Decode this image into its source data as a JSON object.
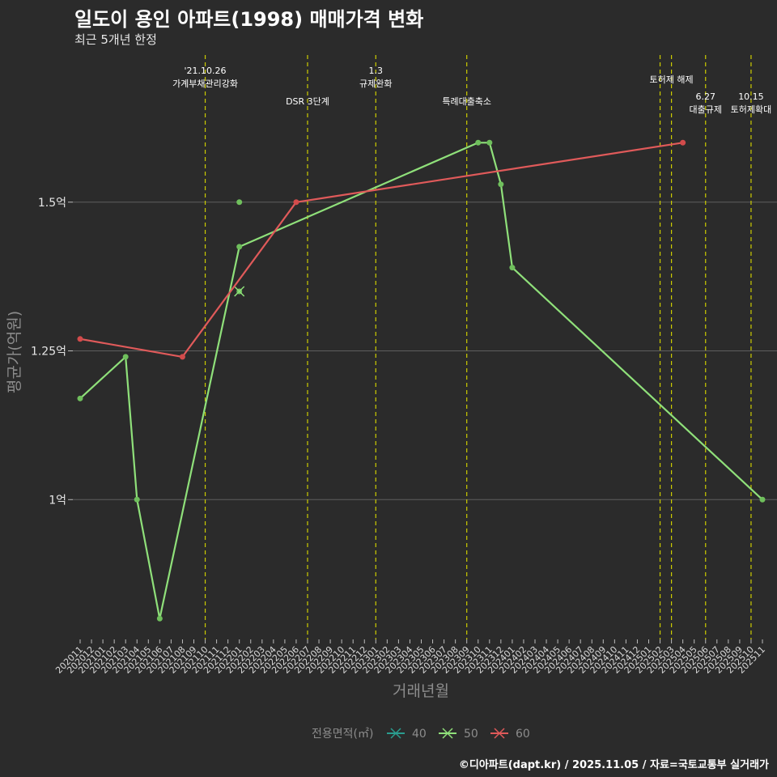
{
  "header": {
    "title": "일도이 용인 아파트(1998) 매매가격 변화",
    "subtitle": "최근 5개년 한정"
  },
  "caption": "©디아파트(dapt.kr) / 2025.11.05 / 자료=국토교통부 실거래가",
  "colors": {
    "background": "#2b2b2b",
    "grid": "#5e5e5e",
    "event_line": "#cccc00",
    "series_40": "#2a9d8f",
    "series_50": "#8fe07a",
    "series_60": "#e05a5a"
  },
  "chart_data": {
    "type": "line",
    "title": "일도이 용인 아파트(1998) 매매가격 변화",
    "subtitle": "최근 5개년 한정",
    "xlabel": "거래년월",
    "ylabel": "평균가(억원)",
    "ylim": [
      0.765,
      1.75
    ],
    "y_ticks": [
      {
        "value": 1.0,
        "label": "1억"
      },
      {
        "value": 1.25,
        "label": "1.25억"
      },
      {
        "value": 1.5,
        "label": "1.5억"
      }
    ],
    "categories": [
      "202011",
      "202012",
      "202101",
      "202102",
      "202103",
      "202104",
      "202105",
      "202106",
      "202107",
      "202108",
      "202109",
      "202110",
      "202111",
      "202112",
      "202201",
      "202202",
      "202203",
      "202204",
      "202205",
      "202206",
      "202207",
      "202208",
      "202209",
      "202210",
      "202211",
      "202212",
      "202301",
      "202302",
      "202303",
      "202304",
      "202305",
      "202306",
      "202307",
      "202308",
      "202309",
      "202310",
      "202311",
      "202312",
      "202401",
      "202402",
      "202403",
      "202404",
      "202405",
      "202406",
      "202407",
      "202408",
      "202409",
      "202410",
      "202411",
      "202412",
      "202501",
      "202502",
      "202503",
      "202504",
      "202505",
      "202506",
      "202507",
      "202508",
      "202509",
      "202510",
      "202511"
    ],
    "series": [
      {
        "name": "40",
        "line": [],
        "points": []
      },
      {
        "name": "50",
        "line": [
          {
            "x": "202011",
            "y": 1.17
          },
          {
            "x": "202103",
            "y": 1.24
          },
          {
            "x": "202104",
            "y": 1.0
          },
          {
            "x": "202106",
            "y": 0.8
          },
          {
            "x": "202201",
            "y": 1.425
          },
          {
            "x": "202310",
            "y": 1.6
          },
          {
            "x": "202311",
            "y": 1.6
          },
          {
            "x": "202312",
            "y": 1.53
          },
          {
            "x": "202401",
            "y": 1.39
          },
          {
            "x": "202511",
            "y": 1.0
          }
        ],
        "points": [
          {
            "x": "202201",
            "y": 1.5
          },
          {
            "x": "202201",
            "y": 1.35
          }
        ],
        "cross_points": [
          {
            "x": "202201",
            "y": 1.35
          }
        ]
      },
      {
        "name": "60",
        "line": [
          {
            "x": "202011",
            "y": 1.27
          },
          {
            "x": "202108",
            "y": 1.24
          },
          {
            "x": "202206",
            "y": 1.5
          },
          {
            "x": "202504",
            "y": 1.6
          }
        ],
        "points": []
      }
    ],
    "events": [
      {
        "x": "202110",
        "label": [
          "'21.10.26",
          "가계부채관리강화"
        ],
        "row": 1
      },
      {
        "x": "202207",
        "label": [
          "DSR 3단계"
        ],
        "row": 3
      },
      {
        "x": "202301",
        "label": [
          "1.3",
          "규제완화"
        ],
        "row": 1
      },
      {
        "x": "202309",
        "label": [
          "특례대출축소"
        ],
        "row": 3
      },
      {
        "x": "202502",
        "label": [],
        "row": 0
      },
      {
        "x": "202503",
        "label": [
          "토허제 해제"
        ],
        "row": 0
      },
      {
        "x": "202506",
        "label": [
          "6.27",
          "대출규제"
        ],
        "row": 2
      },
      {
        "x": "202510",
        "label": [
          "10.15",
          "토허제확대"
        ],
        "row": 2
      }
    ],
    "legend": {
      "title": "전용면적(㎡)",
      "entries": [
        "40",
        "50",
        "60"
      ],
      "position": "bottom"
    }
  }
}
